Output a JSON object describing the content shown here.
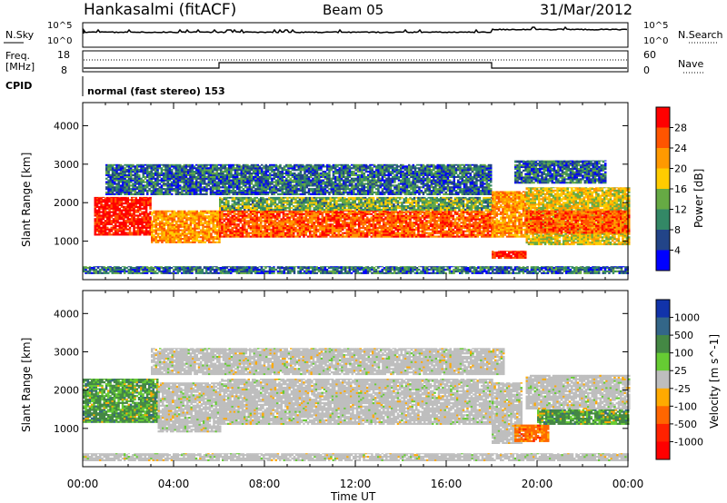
{
  "header": {
    "station": "Hankasalmi (fitACF)",
    "beam": "Beam 05",
    "date": "31/Mar/2012"
  },
  "noise_panel": {
    "left_label": "N.Sky",
    "right_label": "N.Search",
    "y_ticks_left": [
      "10^5",
      "10^0"
    ],
    "y_ticks_right": [
      "10^5",
      "10^0"
    ]
  },
  "freq_panel": {
    "label_line1": "Freq.",
    "label_line2": "[MHz]",
    "right_label": "Nave",
    "y_ticks_left": [
      "18",
      "8"
    ],
    "y_ticks_right": [
      "60",
      "0"
    ]
  },
  "cpid_panel": {
    "label": "CPID",
    "text": "normal (fast stereo) 153"
  },
  "colors": {
    "frame": "#000000",
    "ground_scatter": "#bebebe",
    "background": "#ffffff"
  },
  "chart_data": [
    {
      "type": "heatmap",
      "title": "Power",
      "ylabel": "Slant Range [km]",
      "xlabel": "Time UT",
      "x_ticks": [
        "00:00",
        "04:00",
        "08:00",
        "12:00",
        "16:00",
        "20:00",
        "00:00"
      ],
      "y_ticks": [
        "1000",
        "2000",
        "3000",
        "4000"
      ],
      "ylim": [
        0,
        4600
      ],
      "xlim": [
        0,
        24
      ],
      "colorbar": {
        "label": "Power [dB]",
        "ticks": [
          "28",
          "24",
          "20",
          "16",
          "12",
          "8",
          "4"
        ],
        "colors": [
          "#ff0000",
          "#ff5500",
          "#ff9900",
          "#ffcc00",
          "#66aa44",
          "#338866",
          "#224488",
          "#0000ff"
        ]
      },
      "bands": [
        {
          "t0": 0.5,
          "t1": 3.0,
          "r0": 1150,
          "r1": 2150,
          "level": 28
        },
        {
          "t0": 3.0,
          "t1": 6.0,
          "r0": 950,
          "r1": 1800,
          "level": 20
        },
        {
          "t0": 6.0,
          "t1": 18.0,
          "r0": 1100,
          "r1": 1800,
          "level": 24
        },
        {
          "t0": 6.0,
          "t1": 18.0,
          "r0": 1800,
          "r1": 2150,
          "level": 12
        },
        {
          "t0": 1.0,
          "t1": 18.0,
          "r0": 2200,
          "r1": 3000,
          "level": 8
        },
        {
          "t0": 18.0,
          "t1": 19.5,
          "r0": 1100,
          "r1": 2300,
          "level": 20
        },
        {
          "t0": 18.0,
          "t1": 19.5,
          "r0": 550,
          "r1": 750,
          "level": 28
        },
        {
          "t0": 19.5,
          "t1": 24.0,
          "r0": 900,
          "r1": 2400,
          "level": 16
        },
        {
          "t0": 19.5,
          "t1": 24.0,
          "r0": 1200,
          "r1": 1800,
          "level": 24
        },
        {
          "t0": 19.0,
          "t1": 23.0,
          "r0": 2500,
          "r1": 3100,
          "level": 8
        },
        {
          "t0": 0.0,
          "t1": 24.0,
          "r0": 150,
          "r1": 350,
          "level": 8
        }
      ]
    },
    {
      "type": "heatmap",
      "title": "Velocity",
      "ylabel": "Slant Range [km]",
      "xlabel": "Time UT",
      "x_ticks": [
        "00:00",
        "04:00",
        "08:00",
        "12:00",
        "16:00",
        "20:00",
        "00:00"
      ],
      "y_ticks": [
        "1000",
        "2000",
        "3000",
        "4000"
      ],
      "ylim": [
        0,
        4600
      ],
      "xlim": [
        0,
        24
      ],
      "colorbar": {
        "label": "Velocity [m s^-1]",
        "ticks": [
          "1000",
          "500",
          "100",
          "25",
          "-25",
          "-100",
          "-500",
          "-1000"
        ],
        "colors": [
          "#1133aa",
          "#336688",
          "#448844",
          "#66cc33",
          "#bebebe",
          "#ffaa00",
          "#ff6600",
          "#ff2200",
          "#ff0000"
        ]
      },
      "bands": [
        {
          "t0": 0.0,
          "t1": 3.3,
          "r0": 1150,
          "r1": 2300,
          "level": "green"
        },
        {
          "t0": 3.3,
          "t1": 6.0,
          "r0": 900,
          "r1": 2200,
          "level": "grey"
        },
        {
          "t0": 6.0,
          "t1": 18.0,
          "r0": 1100,
          "r1": 2300,
          "level": "grey"
        },
        {
          "t0": 3.0,
          "t1": 18.5,
          "r0": 2400,
          "r1": 3100,
          "level": "grey"
        },
        {
          "t0": 18.0,
          "t1": 19.3,
          "r0": 600,
          "r1": 2200,
          "level": "grey"
        },
        {
          "t0": 19.0,
          "t1": 20.5,
          "r0": 650,
          "r1": 1100,
          "level": "orange"
        },
        {
          "t0": 20.0,
          "t1": 24.0,
          "r0": 1100,
          "r1": 1500,
          "level": "green"
        },
        {
          "t0": 19.5,
          "t1": 24.0,
          "r0": 1500,
          "r1": 2400,
          "level": "grey"
        },
        {
          "t0": 0.0,
          "t1": 24.0,
          "r0": 150,
          "r1": 350,
          "level": "grey"
        }
      ]
    }
  ]
}
